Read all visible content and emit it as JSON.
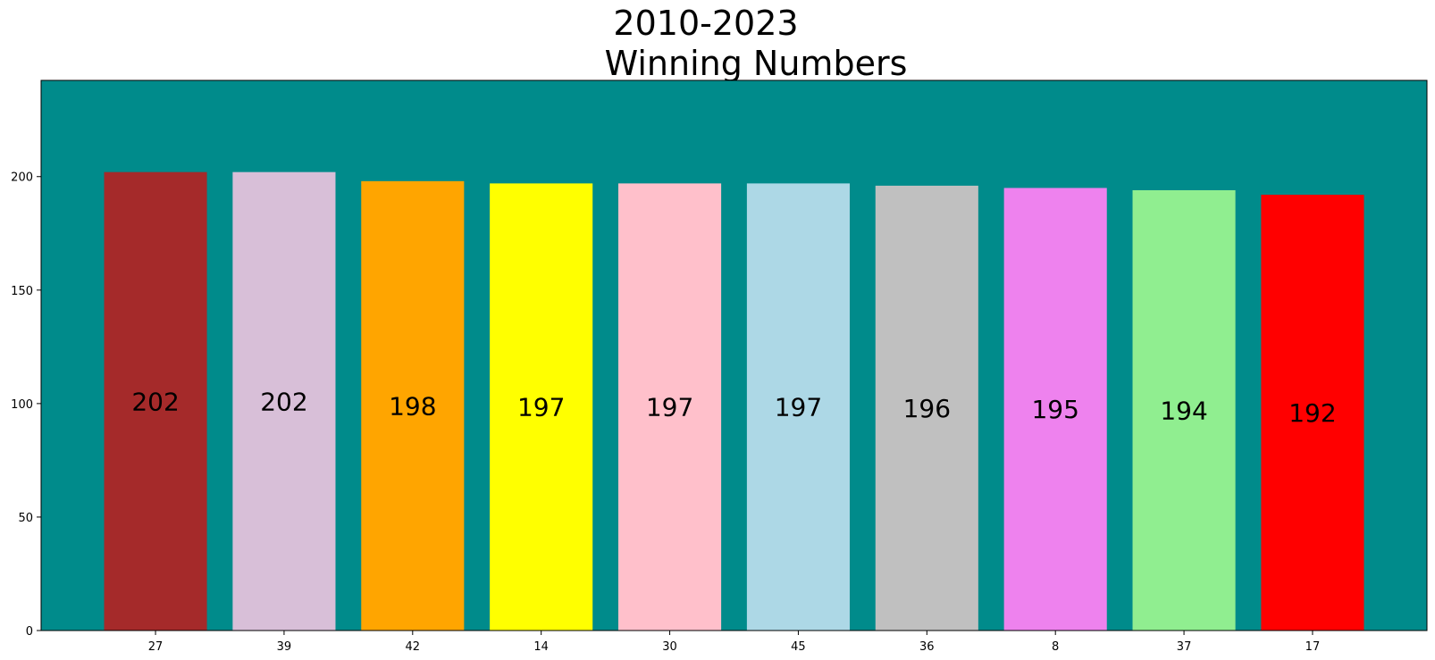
{
  "chart_data": {
    "type": "bar",
    "title_line1": "2010-2023",
    "title_line2": "Winning Numbers",
    "xlabel": "",
    "ylabel": "",
    "categories": [
      "27",
      "39",
      "42",
      "14",
      "30",
      "45",
      "36",
      "8",
      "37",
      "17"
    ],
    "values": [
      202,
      202,
      198,
      197,
      197,
      197,
      196,
      195,
      194,
      192
    ],
    "data_labels": [
      "202",
      "202",
      "198",
      "197",
      "197",
      "197",
      "196",
      "195",
      "194",
      "192"
    ],
    "bar_colors": [
      "#a52a2a",
      "#d8bfd8",
      "#ffa500",
      "#ffff00",
      "#ffc0cb",
      "#add8e6",
      "#c0c0c0",
      "#ee82ee",
      "#90ee90",
      "#ff0000"
    ],
    "y_ticks": [
      "0",
      "50",
      "100",
      "150",
      "200"
    ],
    "ylim": [
      0,
      242.4
    ],
    "plot_background": "#008b8b",
    "grid": false,
    "legend": "none"
  }
}
